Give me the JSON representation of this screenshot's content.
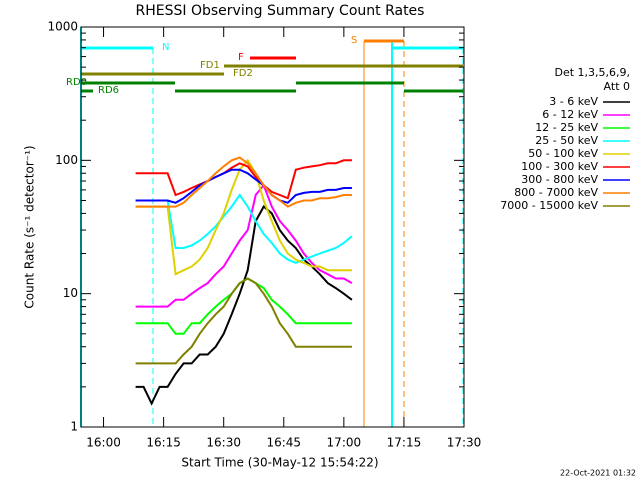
{
  "chart_data": {
    "type": "line",
    "title": "RHESSI Observing Summary Count Rates",
    "x_label": "Start Time (30-May-12 15:54:22)",
    "y_label": "Count Rate (s⁻¹ detector⁻¹)",
    "log_y": true,
    "xlim": [
      -5.63,
      90
    ],
    "ylim": [
      1,
      1000
    ],
    "xticks": [
      {
        "value": 0,
        "label": "16:00"
      },
      {
        "value": 15,
        "label": "16:15"
      },
      {
        "value": 30,
        "label": "16:30"
      },
      {
        "value": 45,
        "label": "16:45"
      },
      {
        "value": 60,
        "label": "17:00"
      },
      {
        "value": 75,
        "label": "17:15"
      },
      {
        "value": 90,
        "label": "17:30"
      }
    ],
    "yticks": [
      1,
      10,
      100,
      1000
    ],
    "legend_title": [
      "Det 1,3,5,6,9,",
      "Att 0"
    ],
    "legend_position": "right",
    "annotations": [
      "N",
      "S",
      "F",
      "FD1",
      "FD2",
      "RD0",
      "RD6"
    ],
    "footer": "22-Oct-2021 01:32",
    "x": [
      8,
      10,
      12,
      14,
      16,
      18,
      20,
      22,
      24,
      26,
      28,
      30,
      32,
      34,
      36,
      38,
      40,
      42,
      44,
      46,
      48,
      50,
      52,
      54,
      56,
      58,
      60,
      62
    ],
    "series": [
      {
        "name": "3 - 6 keV",
        "color": "#000000",
        "values": [
          2,
          2,
          1.5,
          2,
          2,
          2.5,
          3,
          3,
          3.5,
          3.5,
          4,
          5,
          7,
          10,
          15,
          35,
          45,
          40,
          30,
          25,
          22,
          18,
          16,
          14,
          12,
          11,
          10,
          9
        ]
      },
      {
        "name": "6 - 12 keV",
        "color": "#ff00ff",
        "values": [
          8,
          8,
          8,
          8,
          8,
          9,
          9,
          10,
          11,
          12,
          14,
          16,
          20,
          25,
          30,
          55,
          65,
          45,
          35,
          30,
          25,
          20,
          17,
          15,
          14,
          13,
          13,
          12
        ]
      },
      {
        "name": "12 - 25 keV",
        "color": "#00ff00",
        "values": [
          6,
          6,
          6,
          6,
          6,
          5,
          5,
          6,
          6,
          7,
          8,
          9,
          10,
          12,
          13,
          12,
          11,
          9,
          8,
          7,
          6,
          6,
          6,
          6,
          6,
          6,
          6,
          6
        ]
      },
      {
        "name": "25 - 50 keV",
        "color": "#00ffff",
        "values": [
          50,
          50,
          50,
          50,
          50,
          22,
          22,
          23,
          25,
          28,
          32,
          38,
          45,
          55,
          45,
          35,
          28,
          24,
          20,
          18,
          17,
          18,
          19,
          20,
          21,
          22,
          24,
          27
        ]
      },
      {
        "name": "50 - 100 keV",
        "color": "#e0d000",
        "values": [
          45,
          45,
          45,
          45,
          45,
          14,
          15,
          16,
          18,
          22,
          30,
          40,
          60,
          85,
          100,
          80,
          50,
          35,
          25,
          20,
          18,
          17,
          16,
          16,
          15,
          15,
          15,
          15
        ]
      },
      {
        "name": "100 - 300 keV",
        "color": "#ff0000",
        "values": [
          80,
          80,
          80,
          80,
          80,
          55,
          58,
          62,
          66,
          70,
          75,
          80,
          88,
          95,
          90,
          75,
          65,
          58,
          55,
          52,
          85,
          88,
          90,
          92,
          95,
          95,
          100,
          100
        ]
      },
      {
        "name": "300 - 800 keV",
        "color": "#0000ff",
        "values": [
          50,
          50,
          50,
          50,
          50,
          48,
          52,
          58,
          65,
          70,
          75,
          80,
          85,
          85,
          80,
          72,
          65,
          55,
          50,
          48,
          55,
          57,
          58,
          58,
          60,
          60,
          62,
          62
        ]
      },
      {
        "name": "800 - 7000 keV",
        "color": "#ff8000",
        "values": [
          45,
          45,
          45,
          45,
          45,
          45,
          48,
          55,
          62,
          70,
          80,
          90,
          100,
          105,
          95,
          80,
          65,
          55,
          50,
          45,
          48,
          50,
          50,
          52,
          52,
          53,
          55,
          55
        ]
      },
      {
        "name": "7000 - 15000 keV",
        "color": "#808000",
        "values": [
          3,
          3,
          3,
          3,
          3,
          3,
          3.5,
          4,
          5,
          6,
          7,
          8,
          10,
          12,
          13,
          12,
          10,
          8,
          6,
          5,
          4,
          4,
          4,
          4,
          4,
          4,
          4,
          4
        ]
      }
    ]
  }
}
